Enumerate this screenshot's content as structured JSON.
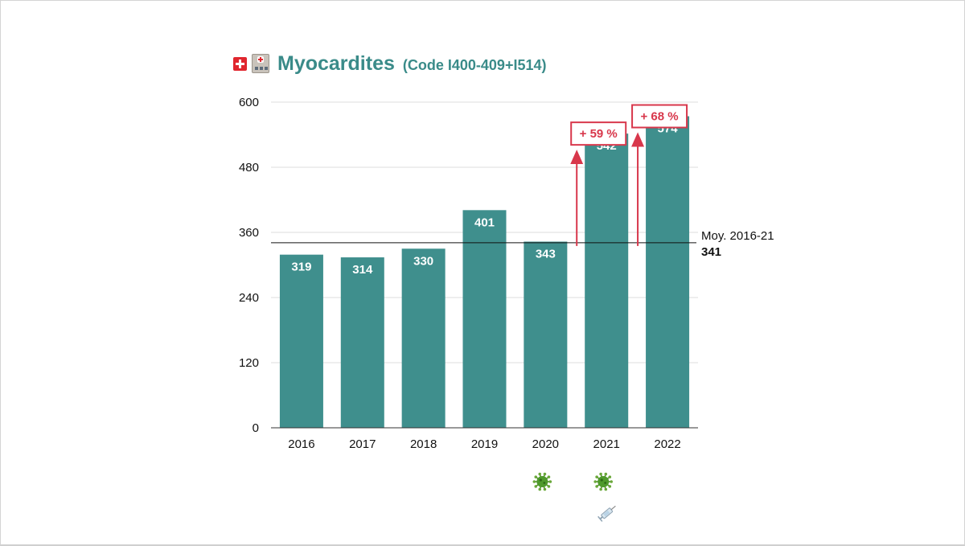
{
  "title": {
    "flag_icon": "swiss-flag-icon",
    "hospital_icon": "hospital-icon",
    "main": "Myocardites",
    "sub": "(Code I400-409+I514)"
  },
  "colors": {
    "bar": "#3f8f8d",
    "title": "#3a8b89",
    "accent": "#d8374b",
    "grid": "#dddddd",
    "axis": "#333333"
  },
  "chart_data": {
    "type": "bar",
    "title": "Myocardites (Code I400-409+I514)",
    "categories": [
      "2016",
      "2017",
      "2018",
      "2019",
      "2020",
      "2021",
      "2022"
    ],
    "values": [
      319,
      314,
      330,
      401,
      343,
      542,
      574
    ],
    "value_labels": [
      "319",
      "314",
      "330",
      "401",
      "343",
      "542",
      "574"
    ],
    "ylim": [
      0,
      600
    ],
    "yticks": [
      0,
      120,
      240,
      360,
      480,
      600
    ],
    "xlabel": "",
    "ylabel": "",
    "grid": true,
    "reference_line": {
      "value": 341,
      "label": "Moy. 2016-21",
      "value_label": "341"
    },
    "annotations": [
      {
        "category": "2021",
        "from": 341,
        "to": 542,
        "text": "+ 59 %"
      },
      {
        "category": "2022",
        "from": 341,
        "to": 574,
        "text": "+ 68 %"
      }
    ],
    "markers": [
      {
        "category": "2020",
        "icons": [
          "virus-icon"
        ]
      },
      {
        "category": "2021",
        "icons": [
          "virus-icon",
          "syringe-icon"
        ]
      }
    ]
  }
}
